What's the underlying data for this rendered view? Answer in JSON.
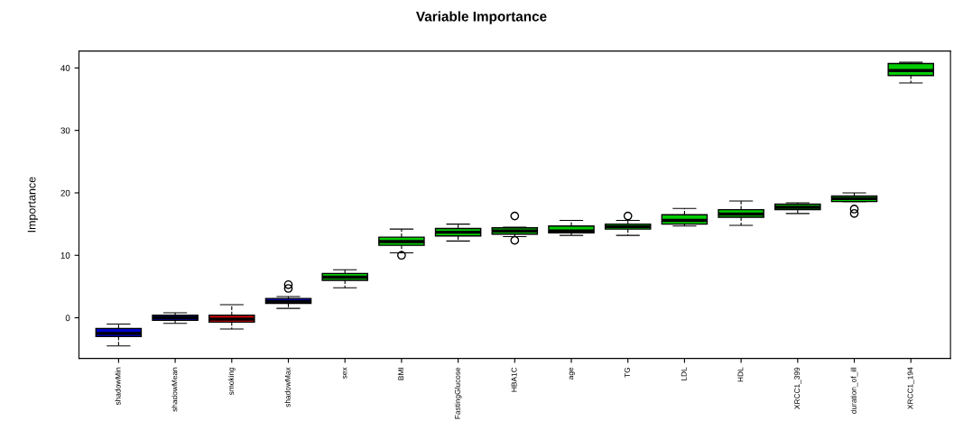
{
  "chart_data": {
    "type": "box",
    "title": "Variable Importance",
    "ylabel": "Importance",
    "categories": [
      "shadowMin",
      "shadowMean",
      "smoking",
      "shadowMax",
      "sex",
      "BMI",
      "FastingGlucose",
      "HBA1C",
      "age",
      "TG",
      "LDL",
      "HDL",
      "XRCC1_399",
      "duration_of_ill",
      "XRCC1_194"
    ],
    "colors": [
      "#0000cc",
      "#0000cc",
      "#dd0000",
      "#0000cc",
      "#00cc00",
      "#00cc00",
      "#00cc00",
      "#00cc00",
      "#00cc00",
      "#00cc00",
      "#00cc00",
      "#00cc00",
      "#00cc00",
      "#00cc00",
      "#00cc00"
    ],
    "boxes": [
      {
        "low": -4.5,
        "q1": -3.0,
        "median": -2.5,
        "q3": -1.7,
        "high": -1.0
      },
      {
        "low": -0.9,
        "q1": -0.4,
        "median": 0.0,
        "q3": 0.4,
        "high": 0.8
      },
      {
        "low": -1.8,
        "q1": -0.7,
        "median": -0.2,
        "q3": 0.4,
        "high": 2.1
      },
      {
        "low": 1.5,
        "q1": 2.3,
        "median": 2.6,
        "q3": 3.1,
        "high": 3.4,
        "outliers": [
          4.7,
          5.3
        ]
      },
      {
        "low": 4.8,
        "q1": 6.0,
        "median": 6.5,
        "q3": 7.1,
        "high": 7.7
      },
      {
        "low": 10.4,
        "q1": 11.6,
        "median": 12.2,
        "q3": 12.9,
        "high": 14.2,
        "outliers": [
          10.0
        ]
      },
      {
        "low": 12.3,
        "q1": 13.1,
        "median": 13.7,
        "q3": 14.3,
        "high": 15.0
      },
      {
        "low": 13.0,
        "q1": 13.4,
        "median": 13.9,
        "q3": 14.4,
        "high": 14.5,
        "outliers": [
          16.3,
          12.4
        ]
      },
      {
        "low": 13.2,
        "q1": 13.6,
        "median": 13.9,
        "q3": 14.7,
        "high": 15.6
      },
      {
        "low": 13.2,
        "q1": 14.2,
        "median": 14.6,
        "q3": 15.0,
        "high": 15.6,
        "outliers": [
          16.3
        ]
      },
      {
        "low": 14.7,
        "q1": 15.0,
        "median": 15.6,
        "q3": 16.5,
        "high": 17.5
      },
      {
        "low": 14.8,
        "q1": 16.1,
        "median": 16.6,
        "q3": 17.3,
        "high": 18.7
      },
      {
        "low": 16.7,
        "q1": 17.3,
        "median": 17.7,
        "q3": 18.2,
        "high": 18.4
      },
      {
        "low": 18.6,
        "q1": 18.6,
        "median": 19.1,
        "q3": 19.5,
        "high": 20.0,
        "outliers": [
          17.4,
          16.7
        ]
      },
      {
        "low": 37.6,
        "q1": 38.8,
        "median": 39.6,
        "q3": 40.7,
        "high": 40.9
      }
    ],
    "ylim": [
      -6.5,
      42.7
    ],
    "yticks": [
      0,
      10,
      20,
      30,
      40
    ],
    "grid": false
  }
}
